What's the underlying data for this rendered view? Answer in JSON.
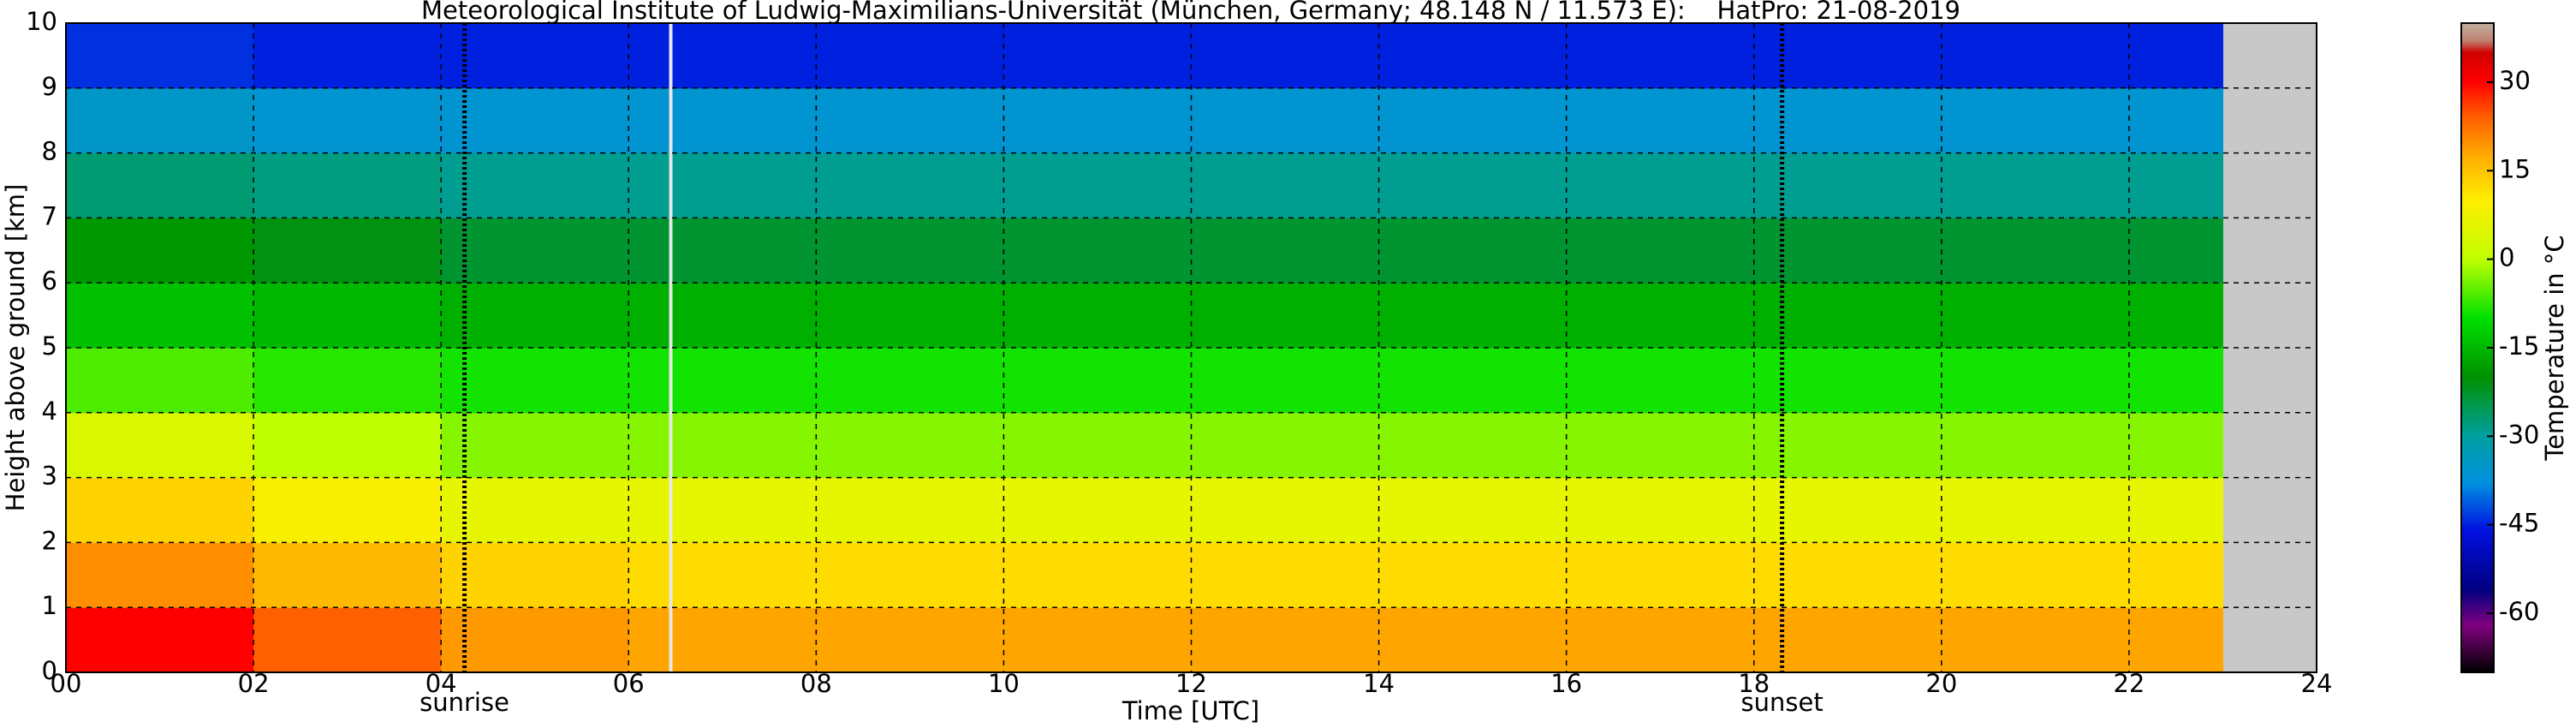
{
  "chart_data": {
    "type": "heatmap",
    "title": "Meteorological Institute of Ludwig-Maximilians-Universität (München, Germany; 48.148 N / 11.573 E):    HatPro: 21-08-2019",
    "x_label": "Time [UTC]",
    "y_label": "Height above ground [km]",
    "colorbar_label": "Temperature in °C",
    "xbins": [
      0,
      2,
      4,
      6,
      8,
      10,
      12,
      14,
      16,
      18,
      20,
      22,
      23
    ],
    "ybins": [
      0,
      1,
      2,
      3,
      4,
      5,
      6,
      7,
      8,
      9,
      10
    ],
    "values": [
      [
        30,
        24,
        19,
        18,
        18,
        18,
        18,
        18,
        18,
        18,
        18,
        18
      ],
      [
        20,
        16,
        13,
        12,
        12,
        12,
        12,
        12,
        12,
        12,
        12,
        12
      ],
      [
        13,
        9,
        6,
        6,
        6,
        6,
        6,
        6,
        6,
        6,
        6,
        6
      ],
      [
        4,
        0,
        -3,
        -3,
        -3,
        -3,
        -3,
        -3,
        -3,
        -3,
        -3,
        -3
      ],
      [
        -6,
        -8,
        -9,
        -9,
        -9,
        -9,
        -9,
        -9,
        -9,
        -9,
        -9,
        -9
      ],
      [
        -14,
        -15,
        -16,
        -16,
        -16,
        -16,
        -16,
        -16,
        -16,
        -16,
        -16,
        -16
      ],
      [
        -19,
        -21,
        -23,
        -23,
        -23,
        -23,
        -23,
        -23,
        -23,
        -23,
        -23,
        -23
      ],
      [
        -27,
        -28,
        -29,
        -29,
        -29,
        -29,
        -29,
        -29,
        -29,
        -29,
        -29,
        -29
      ],
      [
        -35,
        -36,
        -36,
        -36,
        -36,
        -36,
        -36,
        -36,
        -36,
        -36,
        -36,
        -36
      ],
      [
        -44,
        -45,
        -45,
        -45,
        -45,
        -45,
        -45,
        -45,
        -45,
        -45,
        -45,
        -45
      ]
    ],
    "xlim": [
      0,
      24
    ],
    "ylim": [
      0,
      10
    ],
    "clim": [
      -70,
      40
    ],
    "xticks": [
      {
        "value": 0,
        "label": "00"
      },
      {
        "value": 2,
        "label": "02"
      },
      {
        "value": 4,
        "label": "04"
      },
      {
        "value": 6,
        "label": "06"
      },
      {
        "value": 8,
        "label": "08"
      },
      {
        "value": 10,
        "label": "10"
      },
      {
        "value": 12,
        "label": "12"
      },
      {
        "value": 14,
        "label": "14"
      },
      {
        "value": 16,
        "label": "16"
      },
      {
        "value": 18,
        "label": "18"
      },
      {
        "value": 20,
        "label": "20"
      },
      {
        "value": 22,
        "label": "22"
      },
      {
        "value": 24,
        "label": "24"
      }
    ],
    "yticks": [
      0,
      1,
      2,
      3,
      4,
      5,
      6,
      7,
      8,
      9,
      10
    ],
    "cticks": [
      30,
      15,
      0,
      -15,
      -30,
      -45,
      -60
    ],
    "grid": true,
    "missing_color": "#c8c8c8",
    "colormap": [
      {
        "value": -70,
        "color": "#000000"
      },
      {
        "value": -66,
        "color": "#400040"
      },
      {
        "value": -62,
        "color": "#800080"
      },
      {
        "value": -56,
        "color": "#000080"
      },
      {
        "value": -46,
        "color": "#0010e0"
      },
      {
        "value": -38,
        "color": "#0090e0"
      },
      {
        "value": -30,
        "color": "#00a0a0"
      },
      {
        "value": -20,
        "color": "#009000"
      },
      {
        "value": -10,
        "color": "#00e000"
      },
      {
        "value": 0,
        "color": "#c0ff00"
      },
      {
        "value": 10,
        "color": "#ffee00"
      },
      {
        "value": 17,
        "color": "#ffb000"
      },
      {
        "value": 24,
        "color": "#ff6000"
      },
      {
        "value": 30,
        "color": "#ff0000"
      },
      {
        "value": 35,
        "color": "#d00000"
      },
      {
        "value": 37,
        "color": "#c08070"
      },
      {
        "value": 40,
        "color": "#c0b0a0"
      }
    ],
    "vlines": [
      {
        "x": 4.25,
        "color": "#000000",
        "style": "dotted",
        "label": "sunrise"
      },
      {
        "x": 18.3,
        "color": "#000000",
        "style": "dotted",
        "label": "sunset"
      },
      {
        "x": 6.45,
        "color": "#e8e8e8",
        "style": "solid"
      }
    ]
  }
}
